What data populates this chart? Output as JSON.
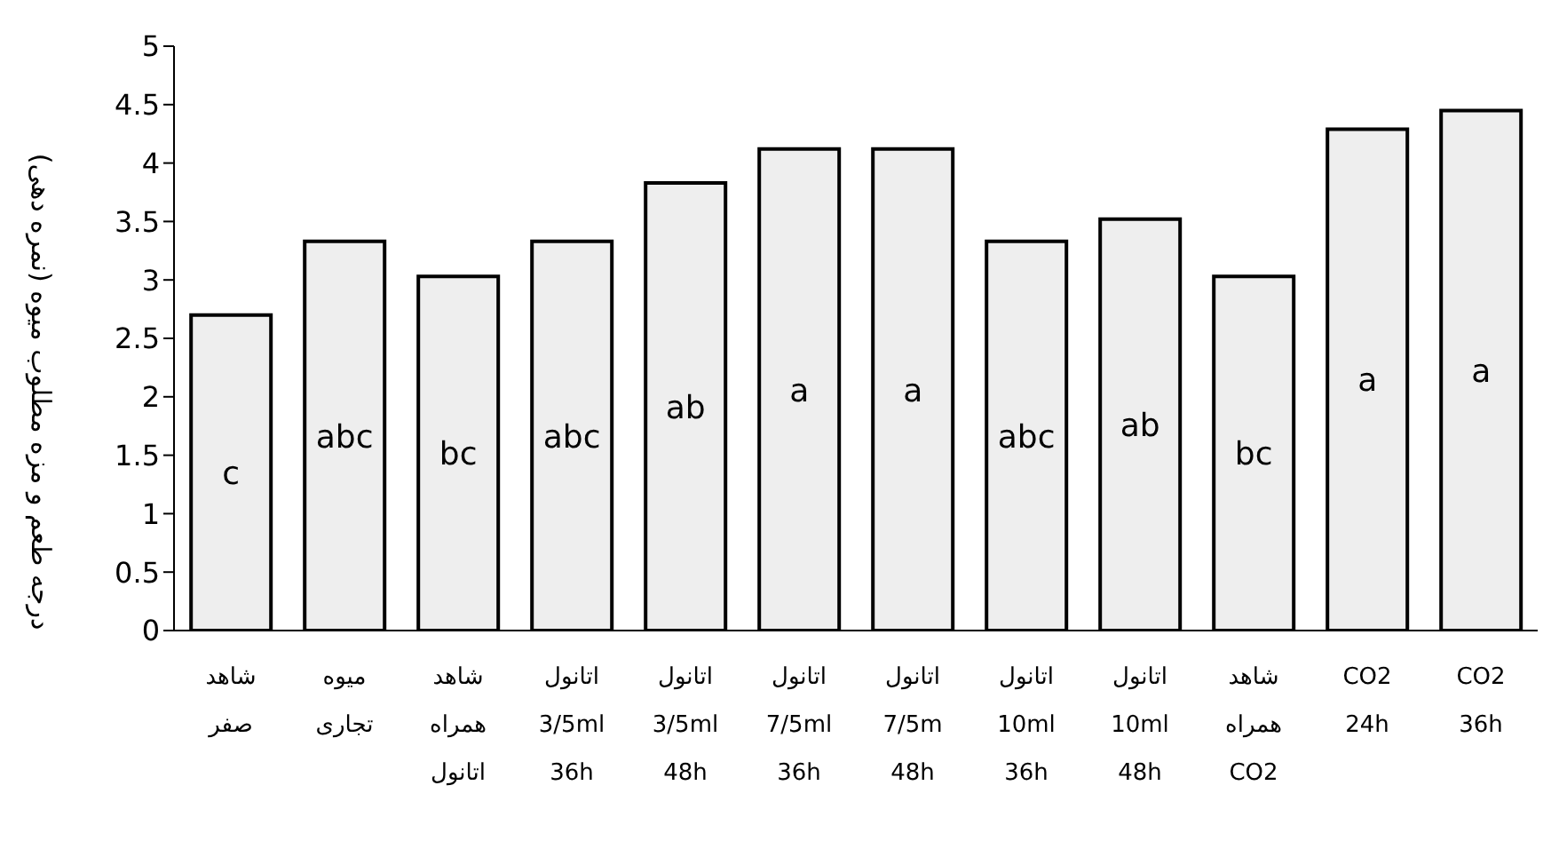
{
  "chart_data": {
    "type": "bar",
    "ylabel": "درجه طعم و مزه مطلوب میوه (نمره دهی)",
    "categories": [
      "شاهد\nصفر",
      "میوه\nتجاری",
      "شاهد\nهمراه\nاتانول",
      "اتانول\n3/5ml\n36h",
      "اتانول\n3/5ml\n48h",
      "اتانول\n7/5ml\n36h",
      "اتانول\n7/5m\n48h",
      "اتانول\n10ml\n36h",
      "اتانول\n10ml\n48h",
      "شاهد\nهمراه\nCO2",
      "CO2\n24h",
      "CO2\n36h"
    ],
    "values": [
      2.7,
      3.33,
      3.03,
      3.33,
      3.83,
      4.12,
      4.12,
      3.33,
      3.52,
      3.03,
      4.29,
      4.45
    ],
    "value_labels": [
      "c",
      "abc",
      "bc",
      "abc",
      "ab",
      "a",
      "a",
      "abc",
      "ab",
      "bc",
      "a",
      "a"
    ],
    "color": "#eeeeee",
    "ylim": [
      0,
      5
    ],
    "yticks": [
      0,
      0.5,
      1,
      1.5,
      2,
      2.5,
      3,
      3.5,
      4,
      4.5,
      5
    ],
    "grid": false,
    "legend": false
  }
}
